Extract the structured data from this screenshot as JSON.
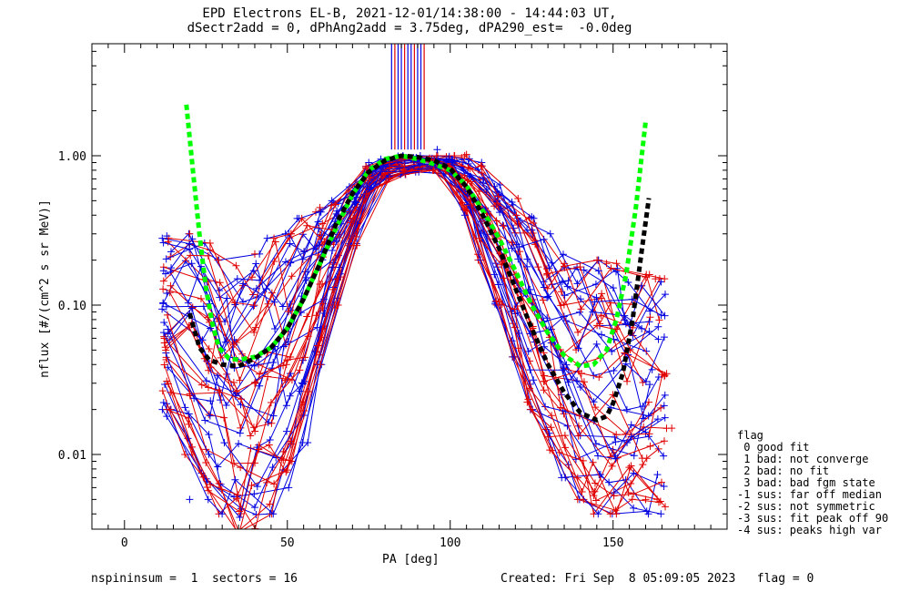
{
  "chart_data": {
    "type": "line",
    "title_line1": "EPD Electrons EL-B, 2021-12-01/14:38:00 - 14:44:03 UT,",
    "title_line2": "dSectr2add = 0, dPhAng2add = 3.75deg, dPA290_est=  -0.0deg",
    "xlabel": "PA [deg]",
    "ylabel": "nflux [#/(cm^2 s sr MeV)]",
    "xlim": [
      -10,
      185
    ],
    "ylim_log10": [
      -2.5,
      0.75
    ],
    "x_ticks": [
      0,
      50,
      100,
      150
    ],
    "y_ticks": [
      {
        "v": 0.01,
        "label": "0.01"
      },
      {
        "v": 0.1,
        "label": "0.10"
      },
      {
        "v": 1.0,
        "label": "1.00"
      }
    ],
    "envelope": {
      "pa": [
        13,
        20,
        25,
        30,
        35,
        40,
        45,
        50,
        55,
        60,
        65,
        70,
        75,
        80,
        85,
        90,
        95,
        100,
        105,
        110,
        115,
        120,
        125,
        130,
        135,
        140,
        145,
        150,
        155,
        160,
        165
      ],
      "upper": [
        0.28,
        0.3,
        0.26,
        0.2,
        0.2,
        0.22,
        0.28,
        0.3,
        0.38,
        0.42,
        0.5,
        0.65,
        0.85,
        0.95,
        1.0,
        1.0,
        1.0,
        1.0,
        1.0,
        0.9,
        0.75,
        0.55,
        0.42,
        0.3,
        0.22,
        0.18,
        0.2,
        0.19,
        0.17,
        0.16,
        0.15
      ],
      "lower": [
        0.02,
        0.01,
        0.005,
        0.004,
        0.003,
        0.003,
        0.004,
        0.006,
        0.012,
        0.04,
        0.1,
        0.25,
        0.55,
        0.7,
        0.75,
        0.78,
        0.8,
        0.75,
        0.4,
        0.2,
        0.1,
        0.045,
        0.02,
        0.01,
        0.007,
        0.005,
        0.004,
        0.004,
        0.004,
        0.004,
        0.004
      ]
    },
    "series": [
      {
        "name": "green fit",
        "color": "#00ff00",
        "x": [
          19,
          21,
          23,
          25,
          27,
          29,
          32,
          35,
          40,
          45,
          50,
          55,
          60,
          65,
          70,
          75,
          80,
          85,
          90,
          95,
          100,
          105,
          110,
          115,
          120,
          125,
          130,
          135,
          140,
          144,
          148,
          151,
          154,
          157,
          160
        ],
        "y": [
          2.2,
          0.8,
          0.3,
          0.13,
          0.075,
          0.052,
          0.044,
          0.043,
          0.045,
          0.052,
          0.07,
          0.11,
          0.19,
          0.33,
          0.55,
          0.8,
          0.95,
          1.0,
          0.95,
          0.88,
          0.8,
          0.63,
          0.43,
          0.28,
          0.17,
          0.1,
          0.065,
          0.046,
          0.039,
          0.04,
          0.05,
          0.08,
          0.16,
          0.45,
          1.7
        ]
      },
      {
        "name": "black fit",
        "color": "#000000",
        "x": [
          20,
          23,
          26,
          30,
          35,
          40,
          45,
          50,
          55,
          60,
          65,
          70,
          75,
          80,
          85,
          90,
          95,
          100,
          105,
          110,
          115,
          120,
          125,
          130,
          135,
          140,
          145,
          148,
          150,
          153,
          156,
          159,
          161
        ],
        "y": [
          0.088,
          0.052,
          0.043,
          0.04,
          0.039,
          0.044,
          0.052,
          0.07,
          0.11,
          0.19,
          0.35,
          0.56,
          0.78,
          0.93,
          1.0,
          0.98,
          0.93,
          0.82,
          0.62,
          0.4,
          0.24,
          0.13,
          0.07,
          0.04,
          0.026,
          0.019,
          0.017,
          0.018,
          0.022,
          0.035,
          0.08,
          0.25,
          0.52
        ]
      }
    ],
    "sample_points": [
      {
        "pa": 20,
        "v": 0.3,
        "c": "red"
      },
      {
        "pa": 40,
        "v": 0.22,
        "c": "red"
      },
      {
        "pa": 60,
        "v": 0.45,
        "c": "red"
      },
      {
        "pa": 105,
        "v": 1.02,
        "c": "red"
      },
      {
        "pa": 148,
        "v": 0.19,
        "c": "red"
      },
      {
        "pa": 163,
        "v": 0.15,
        "c": "red"
      },
      {
        "pa": 168,
        "v": 0.015,
        "c": "red"
      },
      {
        "pa": 127,
        "v": 0.18,
        "c": "red"
      },
      {
        "pa": 53,
        "v": 0.38,
        "c": "blue"
      },
      {
        "pa": 13,
        "v": 0.29,
        "c": "blue"
      },
      {
        "pa": 12,
        "v": 0.17,
        "c": "blue"
      },
      {
        "pa": 13,
        "v": 0.12,
        "c": "blue"
      },
      {
        "pa": 125,
        "v": 0.39,
        "c": "blue"
      },
      {
        "pa": 140,
        "v": 0.11,
        "c": "blue"
      },
      {
        "pa": 162,
        "v": 0.037,
        "c": "blue"
      },
      {
        "pa": 13,
        "v": 0.018,
        "c": "blue"
      },
      {
        "pa": 96,
        "v": 1.1,
        "c": "blue"
      },
      {
        "pa": 75,
        "v": 0.9,
        "c": "blue"
      },
      {
        "pa": 20,
        "v": 0.005,
        "c": "blue"
      },
      {
        "pa": 160,
        "v": 0.005,
        "c": "red"
      },
      {
        "pa": 40,
        "v": 0.03,
        "c": "red"
      }
    ],
    "spike_pa": [
      82,
      83,
      84,
      85,
      86,
      87,
      88,
      89,
      90,
      91,
      92
    ]
  },
  "footer": {
    "left": "nspininsum =  1  sectors = 16",
    "right": "Created: Fri Sep  8 05:09:05 2023   flag = 0"
  },
  "legend": {
    "heading": "flag",
    "items": [
      " 0 good fit",
      " 1 bad: not converge",
      " 2 bad: no fit",
      " 3 bad: bad fgm state",
      "-1 sus: far off median",
      "-2 sus: not symmetric",
      "-3 sus: fit peak off 90",
      "-4 sus: peaks high var"
    ]
  }
}
